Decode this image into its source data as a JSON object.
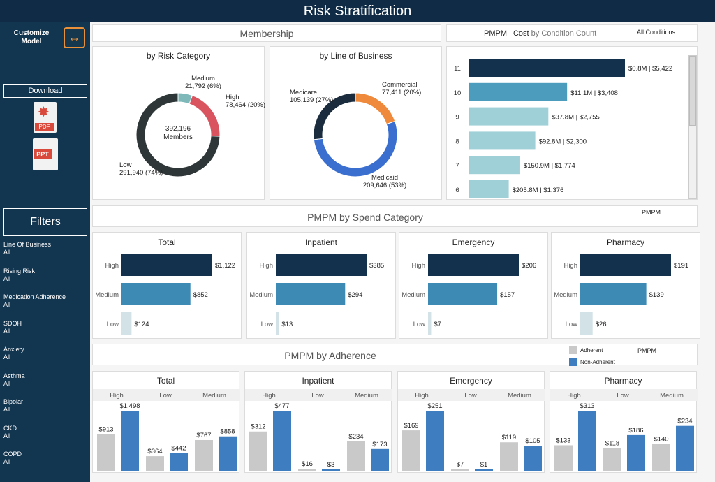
{
  "title": "Risk Stratification",
  "sidebar": {
    "customize_label": "Customize Model",
    "download_label": "Download",
    "pdf_label": "PDF",
    "ppt_label": "PPT",
    "filters_label": "Filters",
    "filters": [
      {
        "name": "Line Of Business",
        "value": "All"
      },
      {
        "name": "Rising Risk",
        "value": "All"
      },
      {
        "name": "Medication Adherence",
        "value": "All"
      },
      {
        "name": "SDOH",
        "value": "All"
      },
      {
        "name": "Anxiety",
        "value": "All"
      },
      {
        "name": "Asthma",
        "value": "All"
      },
      {
        "name": "Bipolar",
        "value": "All"
      },
      {
        "name": "CKD",
        "value": "All"
      },
      {
        "name": "COPD",
        "value": "All"
      }
    ]
  },
  "membership": {
    "title": "Membership",
    "risk": {
      "title": "by Risk Category",
      "center_value": "392,196",
      "center_label": "Members",
      "segments": [
        {
          "name": "Medium",
          "value": 21792,
          "label": "21,792 (6%)",
          "color": "#7fb8b8"
        },
        {
          "name": "High",
          "value": 78464,
          "label": "78,464 (20%)",
          "color": "#d9545f"
        },
        {
          "name": "Low",
          "value": 291940,
          "label": "291,940 (74%)",
          "color": "#2e3638"
        }
      ]
    },
    "lob": {
      "title": "by Line of Business",
      "segments": [
        {
          "name": "Commercial",
          "value": 77411,
          "label": "77,411 (20%)",
          "color": "#ef8a3c"
        },
        {
          "name": "Medicaid",
          "value": 209646,
          "label": "209,646 (53%)",
          "color": "#3a6fcf"
        },
        {
          "name": "Medicare",
          "value": 105139,
          "label": "105,139 (27%)",
          "color": "#1b2c3f"
        }
      ]
    }
  },
  "pmpm_condition": {
    "title_a": "PMPM | Cost",
    "title_b": "by Condition Count",
    "filter": "All Conditions",
    "rows": [
      {
        "count": "11",
        "cost": "$0.8M",
        "pmpm": 5422,
        "label": "$0.8M | $5,422",
        "color": "#13304d"
      },
      {
        "count": "10",
        "cost": "$11.1M",
        "pmpm": 3408,
        "label": "$11.1M | $3,408",
        "color": "#4b9cbd"
      },
      {
        "count": "9",
        "cost": "$37.8M",
        "pmpm": 2755,
        "label": "$37.8M | $2,755",
        "color": "#9fd0d8"
      },
      {
        "count": "8",
        "cost": "$92.8M",
        "pmpm": 2300,
        "label": "$92.8M | $2,300",
        "color": "#9fd0d8"
      },
      {
        "count": "7",
        "cost": "$150.9M",
        "pmpm": 1774,
        "label": "$150.9M | $1,774",
        "color": "#9fd0d8"
      },
      {
        "count": "6",
        "cost": "$205.8M",
        "pmpm": 1376,
        "label": "$205.8M | $1,376",
        "color": "#9fd0d8"
      }
    ]
  },
  "spend": {
    "title": "PMPM by Spend Category",
    "pmpm_label": "PMPM",
    "categories": [
      "High",
      "Medium",
      "Low"
    ],
    "colors": [
      "#13304d",
      "#3d8bb5",
      "#d3e2e6"
    ],
    "panels": [
      {
        "title": "Total",
        "values": [
          1122,
          852,
          124
        ],
        "labels": [
          "$1,122",
          "$852",
          "$124"
        ]
      },
      {
        "title": "Inpatient",
        "values": [
          385,
          294,
          13
        ],
        "labels": [
          "$385",
          "$294",
          "$13"
        ]
      },
      {
        "title": "Emergency",
        "values": [
          206,
          157,
          7
        ],
        "labels": [
          "$206",
          "$157",
          "$7"
        ]
      },
      {
        "title": "Pharmacy",
        "values": [
          191,
          139,
          26
        ],
        "labels": [
          "$191",
          "$139",
          "$26"
        ]
      }
    ]
  },
  "adherence": {
    "title": "PMPM by Adherence",
    "pmpm_label": "PMPM",
    "legend": [
      {
        "name": "Adherent",
        "color": "#c9c9c9"
      },
      {
        "name": "Non-Adherent",
        "color": "#3e7dbf"
      }
    ],
    "groups": [
      "High",
      "Low",
      "Medium"
    ],
    "panels": [
      {
        "title": "Total",
        "pairs": [
          [
            913,
            1498
          ],
          [
            364,
            442
          ],
          [
            767,
            858
          ]
        ],
        "labels": [
          [
            "$913",
            "$1,498"
          ],
          [
            "$364",
            "$442"
          ],
          [
            "$767",
            "$858"
          ]
        ]
      },
      {
        "title": "Inpatient",
        "pairs": [
          [
            312,
            477
          ],
          [
            16,
            3
          ],
          [
            234,
            173
          ]
        ],
        "labels": [
          [
            "$312",
            "$477"
          ],
          [
            "$16",
            "$3"
          ],
          [
            "$234",
            "$173"
          ]
        ]
      },
      {
        "title": "Emergency",
        "pairs": [
          [
            169,
            251
          ],
          [
            7,
            1
          ],
          [
            119,
            105
          ]
        ],
        "labels": [
          [
            "$169",
            "$251"
          ],
          [
            "$7",
            "$1"
          ],
          [
            "$119",
            "$105"
          ]
        ]
      },
      {
        "title": "Pharmacy",
        "pairs": [
          [
            133,
            313
          ],
          [
            118,
            186
          ],
          [
            140,
            234
          ]
        ],
        "labels": [
          [
            "$133",
            "$313"
          ],
          [
            "$118",
            "$186"
          ],
          [
            "$140",
            "$234"
          ]
        ]
      }
    ]
  },
  "chart_data": [
    {
      "type": "pie",
      "title": "by Risk Category",
      "categories": [
        "Low",
        "Medium",
        "High"
      ],
      "values": [
        291940,
        21792,
        78464
      ]
    },
    {
      "type": "pie",
      "title": "by Line of Business",
      "categories": [
        "Medicare",
        "Commercial",
        "Medicaid"
      ],
      "values": [
        105139,
        77411,
        209646
      ]
    },
    {
      "type": "bar",
      "title": "PMPM | Cost by Condition Count",
      "categories": [
        "11",
        "10",
        "9",
        "8",
        "7",
        "6"
      ],
      "values": [
        5422,
        3408,
        2755,
        2300,
        1774,
        1376
      ]
    },
    {
      "type": "bar",
      "title": "PMPM by Spend Category",
      "categories": [
        "High",
        "Medium",
        "Low"
      ],
      "series": [
        {
          "name": "Total",
          "values": [
            1122,
            852,
            124
          ]
        },
        {
          "name": "Inpatient",
          "values": [
            385,
            294,
            13
          ]
        },
        {
          "name": "Emergency",
          "values": [
            206,
            157,
            7
          ]
        },
        {
          "name": "Pharmacy",
          "values": [
            191,
            139,
            26
          ]
        }
      ]
    },
    {
      "type": "bar",
      "title": "PMPM by Adherence",
      "categories": [
        "High",
        "Low",
        "Medium"
      ],
      "series": [
        {
          "name": "Total Adherent",
          "values": [
            913,
            364,
            767
          ]
        },
        {
          "name": "Total Non-Adherent",
          "values": [
            1498,
            442,
            858
          ]
        },
        {
          "name": "Inpatient Adherent",
          "values": [
            312,
            16,
            234
          ]
        },
        {
          "name": "Inpatient Non-Adherent",
          "values": [
            477,
            3,
            173
          ]
        },
        {
          "name": "Emergency Adherent",
          "values": [
            169,
            7,
            119
          ]
        },
        {
          "name": "Emergency Non-Adherent",
          "values": [
            251,
            1,
            105
          ]
        },
        {
          "name": "Pharmacy Adherent",
          "values": [
            133,
            118,
            140
          ]
        },
        {
          "name": "Pharmacy Non-Adherent",
          "values": [
            313,
            186,
            234
          ]
        }
      ]
    }
  ]
}
